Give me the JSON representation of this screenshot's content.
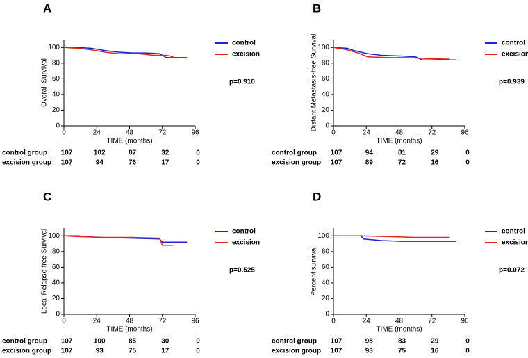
{
  "chart_data": [
    {
      "type": "line",
      "label": "A",
      "ylabel": "Overall Survival",
      "xlabel": "TIME (months)",
      "annotation": "p=0.910",
      "xlim": [
        0,
        96
      ],
      "xticks": [
        0,
        24,
        48,
        72,
        96
      ],
      "ylim": [
        0,
        110
      ],
      "yticks": [
        0,
        20,
        40,
        60,
        80,
        100
      ],
      "series": [
        {
          "name": "control",
          "color": "#2323c8",
          "x": [
            0,
            10,
            20,
            30,
            40,
            50,
            60,
            70,
            75,
            90
          ],
          "values": [
            100,
            100,
            99,
            96,
            94,
            93,
            93,
            92,
            87,
            87
          ]
        },
        {
          "name": "excision",
          "color": "#e02424",
          "x": [
            0,
            10,
            20,
            30,
            40,
            55,
            65,
            75,
            80
          ],
          "values": [
            100,
            99,
            97,
            94,
            92,
            92,
            90,
            90,
            88
          ]
        }
      ],
      "risk_table": {
        "labels": [
          "control group",
          "excision group"
        ],
        "rows": [
          [
            107,
            102,
            87,
            32,
            0
          ],
          [
            107,
            94,
            76,
            17,
            0
          ]
        ]
      }
    },
    {
      "type": "line",
      "label": "B",
      "ylabel": "Distant Metastasis-free Survival",
      "xlabel": "TIME (months)",
      "annotation": "p=0.939",
      "xlim": [
        0,
        96
      ],
      "xticks": [
        0,
        24,
        48,
        72,
        96
      ],
      "ylim": [
        0,
        110
      ],
      "yticks": [
        0,
        20,
        40,
        60,
        80,
        100
      ],
      "series": [
        {
          "name": "control",
          "color": "#2323c8",
          "x": [
            0,
            10,
            15,
            25,
            35,
            50,
            60,
            65,
            90
          ],
          "values": [
            100,
            99,
            96,
            92,
            90,
            89,
            88,
            84,
            84
          ]
        },
        {
          "name": "excision",
          "color": "#e02424",
          "x": [
            0,
            10,
            18,
            25,
            40,
            55,
            65,
            85
          ],
          "values": [
            100,
            97,
            93,
            88,
            87,
            87,
            86,
            85
          ]
        }
      ],
      "risk_table": {
        "labels": [
          "control group",
          "excision group"
        ],
        "rows": [
          [
            107,
            94,
            81,
            29,
            0
          ],
          [
            107,
            89,
            72,
            16,
            0
          ]
        ]
      }
    },
    {
      "type": "line",
      "label": "C",
      "ylabel": "Local Relapse-free Survival",
      "xlabel": "TIME (months)",
      "annotation": "p=0.525",
      "xlim": [
        0,
        96
      ],
      "xticks": [
        0,
        24,
        48,
        72,
        96
      ],
      "ylim": [
        0,
        110
      ],
      "yticks": [
        0,
        20,
        40,
        60,
        80,
        100
      ],
      "series": [
        {
          "name": "control",
          "color": "#2323c8",
          "x": [
            0,
            10,
            25,
            50,
            70,
            72,
            90
          ],
          "values": [
            100,
            100,
            98,
            97,
            96,
            92,
            92
          ]
        },
        {
          "name": "excision",
          "color": "#e02424",
          "x": [
            0,
            10,
            30,
            50,
            70,
            72,
            80
          ],
          "values": [
            100,
            99,
            98,
            98,
            97,
            88,
            88
          ]
        }
      ],
      "risk_table": {
        "labels": [
          "control group",
          "excision group"
        ],
        "rows": [
          [
            107,
            100,
            85,
            30,
            0
          ],
          [
            107,
            93,
            75,
            17,
            0
          ]
        ]
      }
    },
    {
      "type": "line",
      "label": "D",
      "ylabel": "Percent survival",
      "xlabel": "TIME (months)",
      "annotation": "p=0.072",
      "xlim": [
        0,
        96
      ],
      "xticks": [
        0,
        24,
        48,
        72,
        96
      ],
      "ylim": [
        0,
        110
      ],
      "yticks": [
        0,
        20,
        40,
        60,
        80,
        100
      ],
      "series": [
        {
          "name": "control",
          "color": "#2323c8",
          "x": [
            0,
            20,
            22,
            35,
            50,
            90
          ],
          "values": [
            100,
            100,
            96,
            94,
            93,
            93
          ]
        },
        {
          "name": "excision",
          "color": "#e02424",
          "x": [
            0,
            20,
            40,
            60,
            85
          ],
          "values": [
            100,
            100,
            99,
            98,
            98
          ]
        }
      ],
      "risk_table": {
        "labels": [
          "control group",
          "excision group"
        ],
        "rows": [
          [
            107,
            98,
            83,
            29,
            0
          ],
          [
            107,
            93,
            75,
            16,
            0
          ]
        ]
      }
    }
  ]
}
